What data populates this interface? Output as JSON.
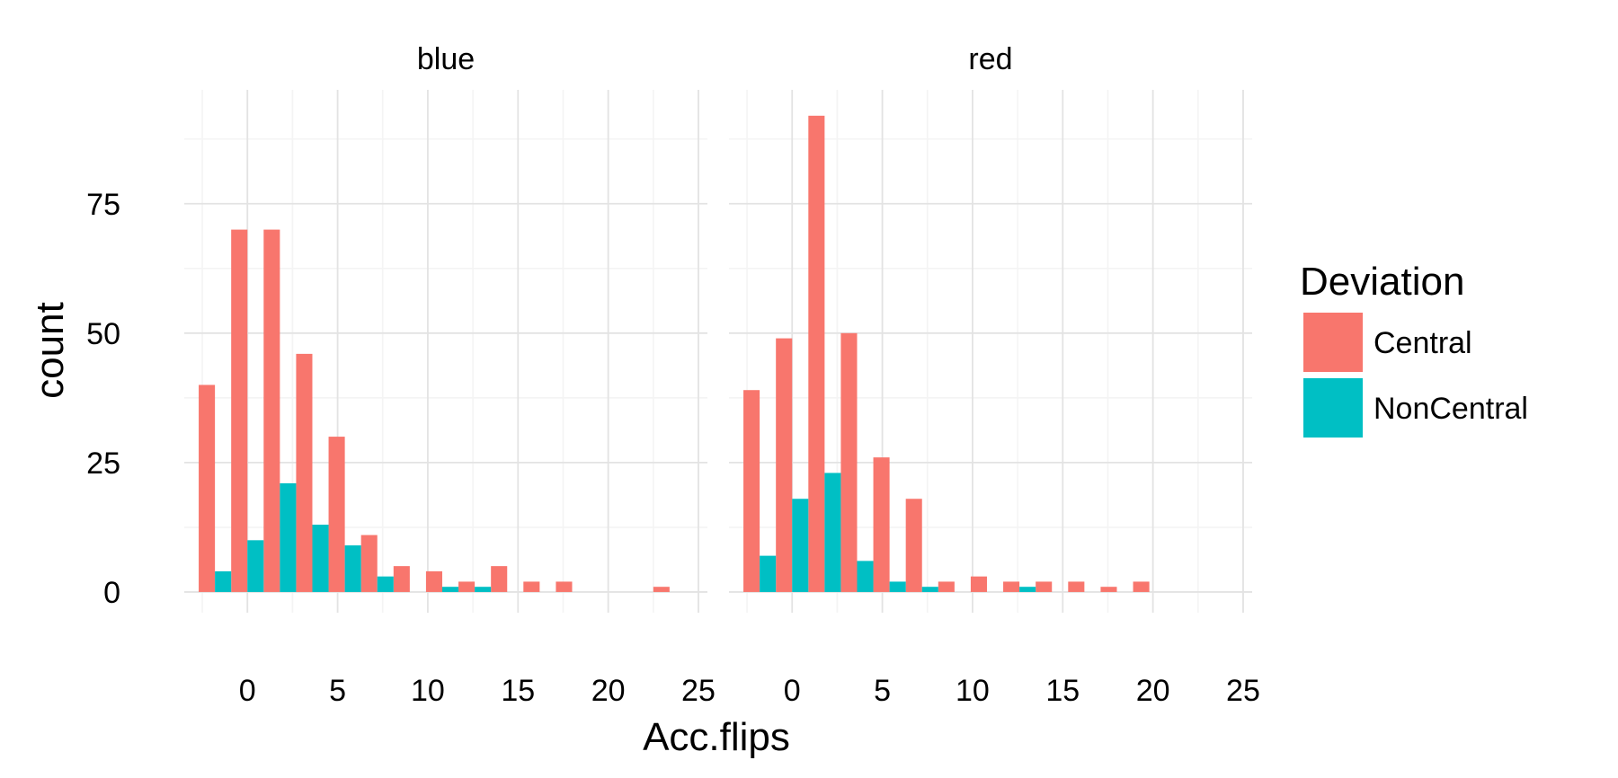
{
  "chart_data": {
    "type": "bar",
    "xlabel": "Acc.flips",
    "ylabel": "count",
    "x_ticks": [
      0,
      5,
      10,
      15,
      20,
      25
    ],
    "y_ticks": [
      0,
      25,
      50,
      75
    ],
    "xlim": [
      -3.5,
      25.5
    ],
    "ylim": [
      -4,
      97
    ],
    "binwidth": 1.8,
    "grid": true,
    "legend": {
      "title": "Deviation",
      "position": "right",
      "entries": [
        {
          "name": "Central",
          "color": "#F8766D"
        },
        {
          "name": "NonCentral",
          "color": "#00BFC4"
        }
      ]
    },
    "panels": [
      {
        "label": "blue",
        "series": [
          {
            "name": "Central",
            "x": [
              -1.8,
              0,
              1.8,
              3.6,
              5.4,
              7.2,
              9.0,
              10.8,
              12.6,
              14.4,
              16.2,
              18.0,
              19.8,
              21.6,
              23.4
            ],
            "values": [
              40,
              70,
              70,
              46,
              30,
              11,
              5,
              4,
              2,
              5,
              2,
              2,
              0,
              0,
              1
            ]
          },
          {
            "name": "NonCentral",
            "x": [
              -1.8,
              0,
              1.8,
              3.6,
              5.4,
              7.2,
              9.0,
              10.8,
              12.6,
              14.4,
              16.2,
              18.0,
              19.8,
              21.6,
              23.4
            ],
            "values": [
              4,
              10,
              21,
              13,
              9,
              3,
              0,
              1,
              1,
              0,
              0,
              0,
              0,
              0,
              0
            ]
          }
        ]
      },
      {
        "label": "red",
        "series": [
          {
            "name": "Central",
            "x": [
              -1.8,
              0,
              1.8,
              3.6,
              5.4,
              7.2,
              9.0,
              10.8,
              12.6,
              14.4,
              16.2,
              18.0,
              19.8
            ],
            "values": [
              39,
              49,
              92,
              50,
              26,
              18,
              2,
              3,
              2,
              2,
              2,
              1,
              2
            ]
          },
          {
            "name": "NonCentral",
            "x": [
              -1.8,
              0,
              1.8,
              3.6,
              5.4,
              7.2,
              9.0,
              10.8,
              12.6,
              14.4,
              16.2,
              18.0,
              19.8
            ],
            "values": [
              7,
              18,
              23,
              6,
              2,
              1,
              0,
              0,
              1,
              0,
              0,
              0,
              0
            ]
          }
        ]
      }
    ]
  }
}
